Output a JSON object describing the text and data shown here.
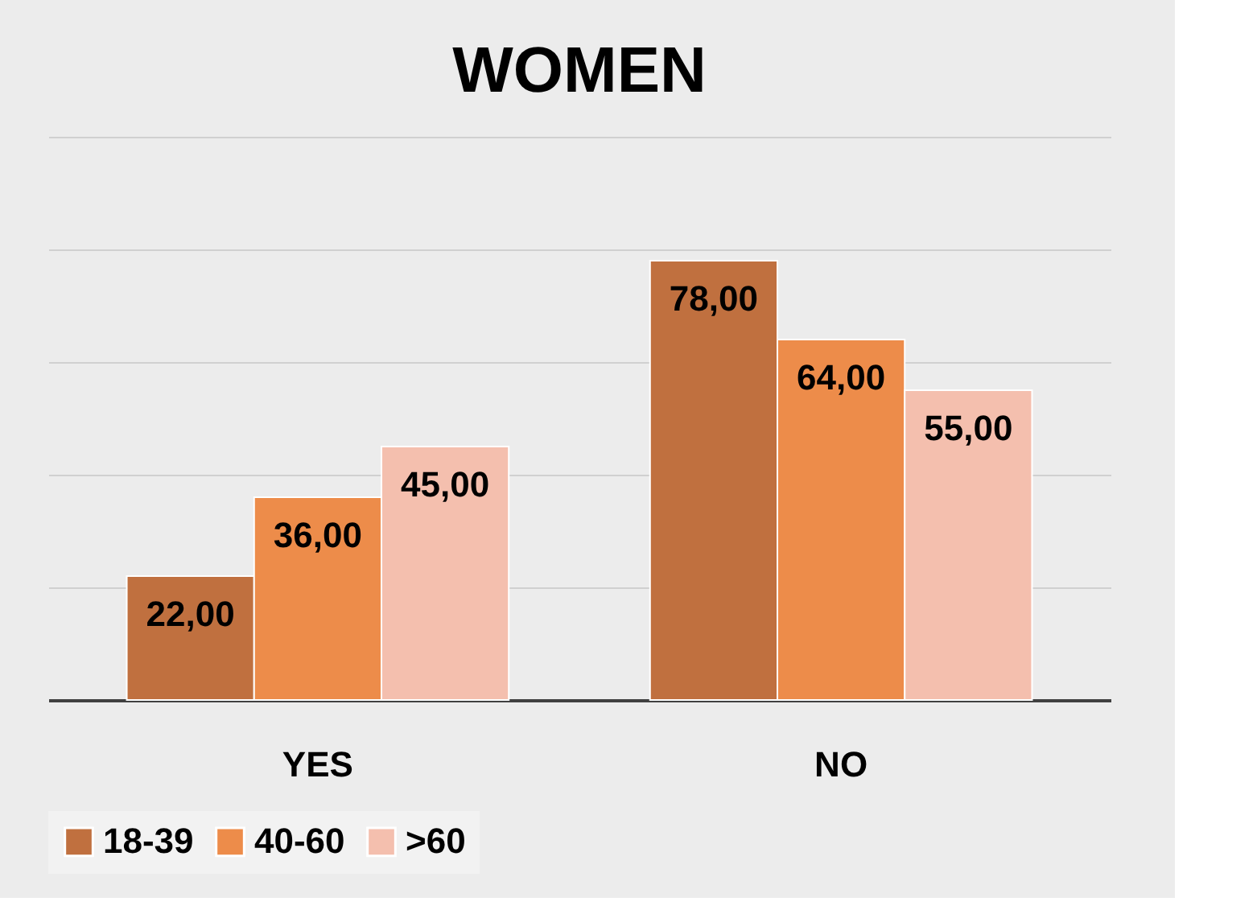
{
  "chart_data": {
    "type": "bar",
    "title": "WOMEN",
    "categories": [
      "YES",
      "NO"
    ],
    "series": [
      {
        "name": "18-39",
        "color": "#c0703f",
        "values": [
          22,
          78
        ],
        "value_labels": [
          "22,00",
          "78,00"
        ]
      },
      {
        "name": "40-60",
        "color": "#ed8c4a",
        "values": [
          36,
          64
        ],
        "value_labels": [
          "36,00",
          "64,00"
        ]
      },
      {
        "name": ">60",
        "color": "#f4bfae",
        "values": [
          45,
          55
        ],
        "value_labels": [
          "45,00",
          "55,00"
        ]
      }
    ],
    "ylim": [
      0,
      100
    ],
    "yticks": [
      {
        "value": 0,
        "label": null
      },
      {
        "value": 20,
        "label": null
      },
      {
        "value": 40,
        "label": null
      },
      {
        "value": 60,
        "label": null
      },
      {
        "value": 80,
        "label": null
      },
      {
        "value": 100,
        "label": null
      }
    ],
    "grid": "y",
    "legend": "bottom",
    "tick_labels": "x"
  }
}
